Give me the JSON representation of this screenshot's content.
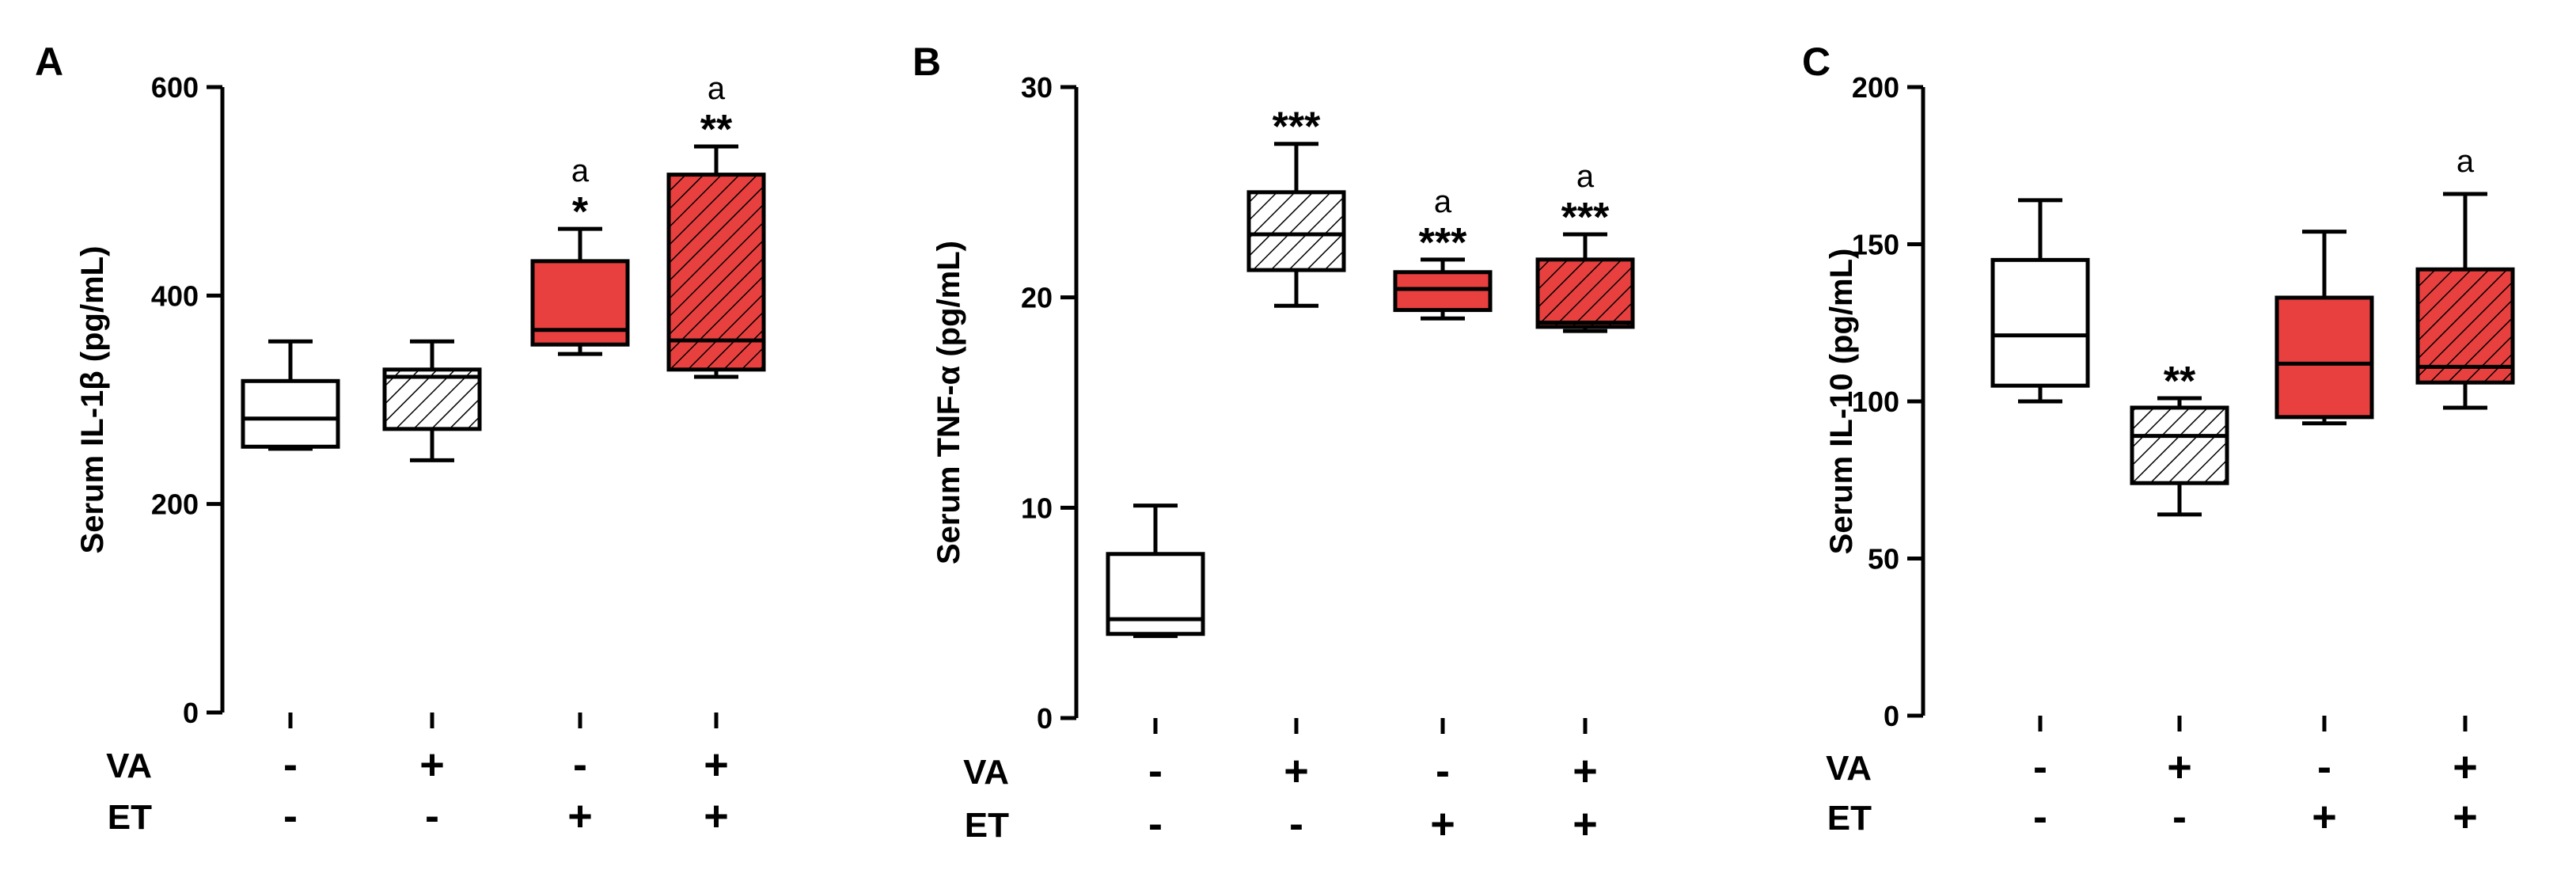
{
  "colors": {
    "white_fill": "#ffffff",
    "red": "#e8403f",
    "axis": "#000000"
  },
  "chart_data": [
    {
      "type": "box",
      "panel": "A",
      "ylabel": "Serum IL-1β (pg/mL)",
      "ylim": [
        0,
        600
      ],
      "yticks": [
        0,
        200,
        400,
        600
      ],
      "rows": [
        {
          "label": "VA",
          "signs": [
            "-",
            "+",
            "-",
            "+"
          ]
        },
        {
          "label": "ET",
          "signs": [
            "-",
            "-",
            "+",
            "+"
          ]
        }
      ],
      "boxes": [
        {
          "fill": "white",
          "hatch": false,
          "min": 253,
          "q1": 255,
          "median": 282,
          "q3": 318,
          "max": 356,
          "sig": "",
          "letter": ""
        },
        {
          "fill": "white",
          "hatch": true,
          "min": 242,
          "q1": 272,
          "median": 322,
          "q3": 329,
          "max": 356,
          "sig": "",
          "letter": ""
        },
        {
          "fill": "red",
          "hatch": false,
          "min": 344,
          "q1": 353,
          "median": 367,
          "q3": 433,
          "max": 464,
          "sig": "*",
          "letter": "a"
        },
        {
          "fill": "red",
          "hatch": true,
          "min": 322,
          "q1": 329,
          "median": 357,
          "q3": 516,
          "max": 543,
          "sig": "**",
          "letter": "a"
        }
      ]
    },
    {
      "type": "box",
      "panel": "B",
      "ylabel": "Serum TNF-α (pg/mL)",
      "ylim": [
        0,
        30
      ],
      "yticks": [
        0,
        10,
        20,
        30
      ],
      "rows": [
        {
          "label": "VA",
          "signs": [
            "-",
            "+",
            "-",
            "+"
          ]
        },
        {
          "label": "ET",
          "signs": [
            "-",
            "-",
            "+",
            "+"
          ]
        }
      ],
      "boxes": [
        {
          "fill": "white",
          "hatch": false,
          "min": 3.9,
          "q1": 4.0,
          "median": 4.7,
          "q3": 7.8,
          "max": 10.1,
          "sig": "",
          "letter": ""
        },
        {
          "fill": "white",
          "hatch": true,
          "min": 19.6,
          "q1": 21.3,
          "median": 23.0,
          "q3": 25.0,
          "max": 27.3,
          "sig": "***",
          "letter": ""
        },
        {
          "fill": "red",
          "hatch": false,
          "min": 19.0,
          "q1": 19.4,
          "median": 20.4,
          "q3": 21.2,
          "max": 21.8,
          "sig": "***",
          "letter": "a"
        },
        {
          "fill": "red",
          "hatch": true,
          "min": 18.4,
          "q1": 18.6,
          "median": 18.8,
          "q3": 21.8,
          "max": 23.0,
          "sig": "***",
          "letter": "a"
        }
      ]
    },
    {
      "type": "box",
      "panel": "C",
      "ylabel": "Serum IL-10 (pg/mL)",
      "ylim": [
        0,
        200
      ],
      "yticks": [
        0,
        50,
        100,
        150,
        200
      ],
      "rows": [
        {
          "label": "VA",
          "signs": [
            "-",
            "+",
            "-",
            "+"
          ]
        },
        {
          "label": "ET",
          "signs": [
            "-",
            "-",
            "+",
            "+"
          ]
        }
      ],
      "boxes": [
        {
          "fill": "white",
          "hatch": false,
          "min": 100,
          "q1": 105,
          "median": 121,
          "q3": 145,
          "max": 164,
          "sig": "",
          "letter": ""
        },
        {
          "fill": "white",
          "hatch": true,
          "min": 64,
          "q1": 74,
          "median": 89,
          "q3": 98,
          "max": 101,
          "sig": "**",
          "letter": ""
        },
        {
          "fill": "red",
          "hatch": false,
          "min": 93,
          "q1": 95,
          "median": 112,
          "q3": 133,
          "max": 154,
          "sig": "",
          "letter": ""
        },
        {
          "fill": "red",
          "hatch": true,
          "min": 98,
          "q1": 106,
          "median": 111,
          "q3": 142,
          "max": 166,
          "sig": "",
          "letter": "a"
        }
      ]
    }
  ]
}
